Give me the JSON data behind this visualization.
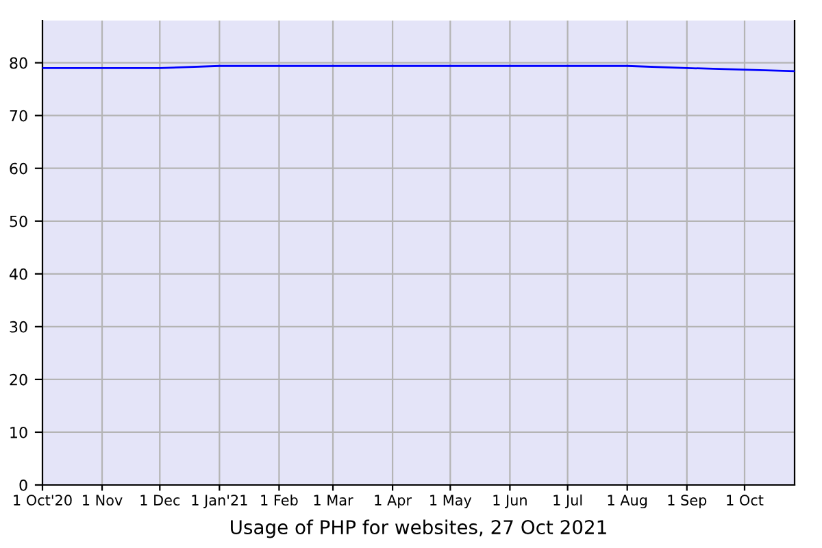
{
  "chart_data": {
    "type": "line",
    "title": "Usage of PHP for websites, 27 Oct 2021",
    "x": [
      "2020-10-01",
      "2020-12-01",
      "2021-01-01",
      "2021-08-01",
      "2021-09-01",
      "2021-10-27"
    ],
    "series": [
      {
        "color": "#0000ff",
        "values": [
          79.0,
          79.0,
          79.4,
          79.4,
          79.0,
          78.4
        ]
      }
    ],
    "xlim": [
      "2020-10-01",
      "2021-10-27"
    ],
    "xticks": [
      {
        "value": "2020-10-01",
        "label": "1 Oct'20"
      },
      {
        "value": "2020-11-01",
        "label": "1 Nov"
      },
      {
        "value": "2020-12-01",
        "label": "1 Dec"
      },
      {
        "value": "2021-01-01",
        "label": "1 Jan'21"
      },
      {
        "value": "2021-02-01",
        "label": "1 Feb"
      },
      {
        "value": "2021-03-01",
        "label": "1 Mar"
      },
      {
        "value": "2021-04-01",
        "label": "1 Apr"
      },
      {
        "value": "2021-05-01",
        "label": "1 May"
      },
      {
        "value": "2021-06-01",
        "label": "1 Jun"
      },
      {
        "value": "2021-07-01",
        "label": "1 Jul"
      },
      {
        "value": "2021-08-01",
        "label": "1 Aug"
      },
      {
        "value": "2021-09-01",
        "label": "1 Sep"
      },
      {
        "value": "2021-10-01",
        "label": "1 Oct"
      }
    ],
    "ylim": [
      0,
      88
    ],
    "yticks": [
      0,
      10,
      20,
      30,
      40,
      50,
      60,
      70,
      80
    ],
    "grid": true,
    "marker": "none",
    "line_style": "solid",
    "legend": false
  }
}
